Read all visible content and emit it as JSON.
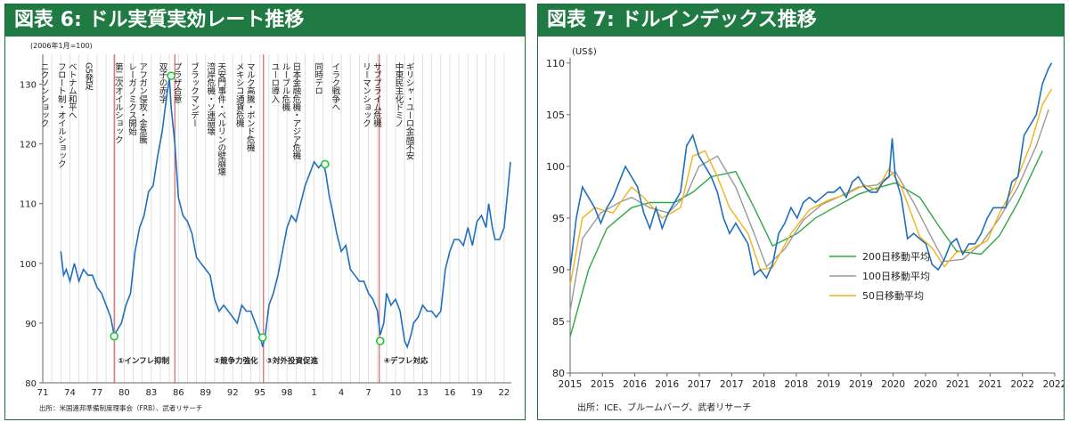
{
  "left_panel": {
    "title": "図表 6: ドル実質実効レート推移",
    "chart_data": {
      "type": "line",
      "unit_note": "(2006年1月=100)",
      "source": "出所：米国連邦準備制度理事会（FRB）、武者リサーチ",
      "ylim": [
        80,
        135
      ],
      "yticks": [
        80,
        90,
        100,
        110,
        120,
        130
      ],
      "xlim": [
        1971,
        2022.8
      ],
      "xticks": [
        71,
        74,
        77,
        80,
        83,
        86,
        89,
        92,
        95,
        98,
        1,
        4,
        7,
        10,
        13,
        16,
        19,
        22
      ],
      "series": [
        {
          "x": [
            1973.0,
            1973.3,
            1973.6,
            1974.0,
            1974.5,
            1975.0,
            1975.5,
            1976.0,
            1976.5,
            1977.0,
            1977.5,
            1978.0,
            1978.5,
            1978.9,
            1979.3,
            1979.7,
            1980.2,
            1980.7,
            1981.2,
            1981.7,
            1982.2,
            1982.7,
            1983.2,
            1983.7,
            1984.2,
            1984.7,
            1985.0,
            1985.2,
            1985.6,
            1986.0,
            1986.5,
            1987.0,
            1987.5,
            1988.0,
            1988.5,
            1989.0,
            1989.5,
            1990.0,
            1990.5,
            1991.0,
            1991.5,
            1992.0,
            1992.5,
            1993.0,
            1993.5,
            1994.0,
            1994.5,
            1995.0,
            1995.3,
            1995.6,
            1996.0,
            1996.5,
            1997.0,
            1997.5,
            1998.0,
            1998.5,
            1999.0,
            1999.5,
            2000.0,
            2000.5,
            2001.0,
            2001.5,
            2002.0,
            2002.3,
            2002.7,
            2003.0,
            2003.5,
            2004.0,
            2004.5,
            2005.0,
            2005.5,
            2006.0,
            2006.5,
            2007.0,
            2007.5,
            2008.0,
            2008.3,
            2008.7,
            2009.0,
            2009.5,
            2010.0,
            2010.5,
            2011.0,
            2011.3,
            2011.7,
            2012.0,
            2012.5,
            2013.0,
            2013.5,
            2014.0,
            2014.5,
            2015.0,
            2015.5,
            2016.0,
            2016.5,
            2017.0,
            2017.5,
            2018.0,
            2018.5,
            2019.0,
            2019.5,
            2020.0,
            2020.3,
            2020.7,
            2021.0,
            2021.5,
            2022.0,
            2022.4,
            2022.7
          ],
          "values": [
            102,
            98,
            99,
            97,
            100,
            97,
            99,
            98,
            98,
            96,
            95,
            93,
            91,
            88,
            89,
            90,
            93,
            95,
            102,
            106,
            108,
            112,
            113,
            118,
            122,
            128,
            131,
            126,
            120,
            111,
            108,
            107,
            105,
            101,
            100,
            99,
            98,
            94,
            92,
            93,
            92,
            91,
            90,
            93,
            92,
            92,
            90,
            88,
            86,
            88,
            93,
            95,
            98,
            102,
            106,
            108,
            107,
            110,
            113,
            115,
            117,
            116,
            117,
            115,
            111,
            109,
            105,
            102,
            103,
            99,
            98,
            97,
            97,
            95,
            94,
            92,
            88,
            90,
            95,
            93,
            94,
            92,
            87,
            86,
            88,
            90,
            91,
            93,
            92,
            92,
            91,
            92,
            99,
            102,
            104,
            104,
            103,
            106,
            103,
            107,
            108,
            106,
            110,
            106,
            104,
            104,
            106,
            112,
            117
          ],
          "color": "#1f6fbf"
        }
      ],
      "markers": [
        {
          "x": 1978.9,
          "y": 87.8,
          "label": "①インフレ抑制"
        },
        {
          "x": 1985.2,
          "y": 131.4,
          "label": ""
        },
        {
          "x": 1995.3,
          "y": 87.6,
          "label": "③対外投資促進"
        },
        {
          "x": 2002.2,
          "y": 116.6,
          "label": ""
        },
        {
          "x": 2008.3,
          "y": 87.0,
          "label": "④デフレ対応"
        }
      ],
      "annotation_extra": "②競争力強化",
      "red_lines": [
        1978.9,
        1985.6,
        1995.4,
        2008.2
      ],
      "events": [
        {
          "x": 1971.1,
          "lines": [
            "ニクソンショック"
          ]
        },
        {
          "x": 1973.0,
          "lines": [
            "フロート制・オイルショック",
            "ベトナム和平へ"
          ]
        },
        {
          "x": 1976.0,
          "lines": [
            "G5発足"
          ]
        },
        {
          "x": 1979.3,
          "lines": [
            "第二次オイルショック"
          ]
        },
        {
          "x": 1980.8,
          "lines": [
            "レーガノミクス開始",
            "アフガン侵攻・金急騰"
          ]
        },
        {
          "x": 1984.2,
          "lines": [
            "双子の赤字"
          ]
        },
        {
          "x": 1985.8,
          "lines": [
            "プラザ合意"
          ]
        },
        {
          "x": 1987.7,
          "lines": [
            "ブラックマンデー"
          ]
        },
        {
          "x": 1989.5,
          "lines": [
            "湾岸危機・ソ連崩壊",
            "天安門事件・ベルリンの壁崩壊"
          ]
        },
        {
          "x": 1992.7,
          "lines": [
            "メキシコ通貨危機",
            "マルク高騰・ポンド危機"
          ]
        },
        {
          "x": 1996.6,
          "lines": [
            "ユーロ導入",
            "ルーブル危機",
            "日本金融危機・アジア危機"
          ]
        },
        {
          "x": 2001.4,
          "lines": [
            "同時テロ"
          ]
        },
        {
          "x": 2003.3,
          "lines": [
            "イラク戦争へ"
          ]
        },
        {
          "x": 2006.7,
          "lines": [
            "リーマンショック",
            "サブプライム危機"
          ]
        },
        {
          "x": 2010.3,
          "lines": [
            "中東民主化ドミノ",
            "ギリシャ・ユーロ金融不安"
          ]
        }
      ]
    }
  },
  "right_panel": {
    "title": "図表 7: ドルインデックス推移",
    "chart_data": {
      "type": "line",
      "ylabel": "(US$)",
      "source": "出所：ICE、ブルームバーグ、武者リサーチ",
      "ylim": [
        80,
        110.5
      ],
      "yticks": [
        80,
        85,
        90,
        95,
        100,
        105,
        110
      ],
      "xlim": [
        2015.0,
        2022.9
      ],
      "xticks": [
        "2015",
        "2015",
        "2016",
        "2016",
        "2017",
        "2017",
        "2018",
        "2018",
        "2019",
        "2019",
        "2020",
        "2020",
        "2021",
        "2021",
        "2022",
        "2022"
      ],
      "legend_position": "center",
      "series": [
        {
          "name": "200日移動平均",
          "color": "#2ea844",
          "x": [
            2015.0,
            2015.3,
            2015.6,
            2016.0,
            2016.3,
            2016.7,
            2017.0,
            2017.3,
            2017.7,
            2018.0,
            2018.3,
            2018.7,
            2019.0,
            2019.3,
            2019.7,
            2020.0,
            2020.3,
            2020.7,
            2021.0,
            2021.3,
            2021.7,
            2022.0,
            2022.3,
            2022.7
          ],
          "values": [
            83.5,
            90,
            94,
            96,
            96.5,
            96.5,
            97.5,
            99,
            99.5,
            96,
            92.3,
            93.5,
            95,
            96,
            97.3,
            97.9,
            98.4,
            97,
            94.3,
            91.8,
            91.5,
            93.3,
            96.5,
            101.5
          ]
        },
        {
          "name": "100日移動平均",
          "color": "#9a9a9a",
          "x": [
            2015.0,
            2015.2,
            2015.5,
            2015.8,
            2016.0,
            2016.3,
            2016.6,
            2016.9,
            2017.1,
            2017.4,
            2017.7,
            2018.0,
            2018.2,
            2018.5,
            2018.8,
            2019.1,
            2019.4,
            2019.7,
            2020.0,
            2020.3,
            2020.6,
            2020.9,
            2021.1,
            2021.4,
            2021.7,
            2022.0,
            2022.3,
            2022.6,
            2022.8
          ],
          "values": [
            86,
            93,
            95.5,
            96.5,
            97,
            96,
            95.5,
            97.3,
            100,
            101,
            98,
            93.5,
            90.3,
            92,
            94.8,
            96.3,
            97.1,
            98,
            98.2,
            99.5,
            96.5,
            93,
            90.8,
            91,
            92.5,
            95,
            98,
            102,
            105.5
          ]
        },
        {
          "name": "50日移動平均",
          "color": "#f2b21c",
          "x": [
            2015.0,
            2015.2,
            2015.4,
            2015.7,
            2016.0,
            2016.2,
            2016.5,
            2016.8,
            2017.0,
            2017.2,
            2017.4,
            2017.6,
            2017.9,
            2018.1,
            2018.3,
            2018.6,
            2018.9,
            2019.2,
            2019.5,
            2019.8,
            2020.0,
            2020.2,
            2020.4,
            2020.7,
            2020.9,
            2021.1,
            2021.3,
            2021.5,
            2021.8,
            2022.0,
            2022.2,
            2022.5,
            2022.7,
            2022.85
          ],
          "values": [
            88.5,
            95,
            96,
            95.5,
            98,
            97,
            95,
            96,
            101,
            101.5,
            99,
            96,
            93.5,
            90,
            90.2,
            93.5,
            95.8,
            96.7,
            97.3,
            98.2,
            97.7,
            99.8,
            98,
            93.2,
            92.1,
            90.3,
            91.7,
            91.9,
            92.8,
            95.5,
            97.6,
            102,
            106,
            107.5
          ]
        },
        {
          "name": "",
          "color": "#1f6fbf",
          "x": [
            2015.0,
            2015.1,
            2015.2,
            2015.3,
            2015.4,
            2015.5,
            2015.6,
            2015.7,
            2015.8,
            2015.9,
            2016.0,
            2016.1,
            2016.2,
            2016.3,
            2016.4,
            2016.5,
            2016.6,
            2016.7,
            2016.8,
            2016.9,
            2017.0,
            2017.1,
            2017.2,
            2017.3,
            2017.4,
            2017.5,
            2017.6,
            2017.7,
            2017.8,
            2017.9,
            2018.0,
            2018.1,
            2018.2,
            2018.3,
            2018.4,
            2018.5,
            2018.6,
            2018.7,
            2018.8,
            2018.9,
            2019.0,
            2019.1,
            2019.2,
            2019.3,
            2019.4,
            2019.5,
            2019.6,
            2019.7,
            2019.8,
            2019.9,
            2020.0,
            2020.1,
            2020.2,
            2020.25,
            2020.3,
            2020.4,
            2020.5,
            2020.6,
            2020.7,
            2020.8,
            2020.9,
            2021.0,
            2021.1,
            2021.2,
            2021.3,
            2021.4,
            2021.5,
            2021.6,
            2021.7,
            2021.8,
            2021.9,
            2022.0,
            2022.1,
            2022.2,
            2022.3,
            2022.4,
            2022.5,
            2022.6,
            2022.7,
            2022.8,
            2022.85
          ],
          "values": [
            90,
            95,
            98,
            97,
            96,
            94.5,
            96,
            97,
            98.5,
            100,
            99,
            98,
            95.5,
            94,
            96,
            94,
            95.5,
            96.5,
            97.5,
            102,
            103,
            101,
            100,
            99,
            97.5,
            95,
            93.5,
            94.5,
            93.5,
            92.5,
            89.5,
            90,
            89.2,
            90.5,
            93.5,
            94.5,
            96,
            95,
            96.5,
            97,
            96.5,
            97,
            97.5,
            97.5,
            98,
            97,
            98.5,
            99,
            98,
            97.5,
            97.5,
            98.5,
            99,
            102.7,
            99,
            97,
            93,
            93.5,
            93,
            92.5,
            90.5,
            90,
            91,
            92.5,
            93,
            91.5,
            92.5,
            92.5,
            93.5,
            95,
            96,
            96,
            96,
            98.5,
            99,
            103,
            104,
            105,
            108,
            109.5,
            110
          ]
        }
      ]
    }
  }
}
